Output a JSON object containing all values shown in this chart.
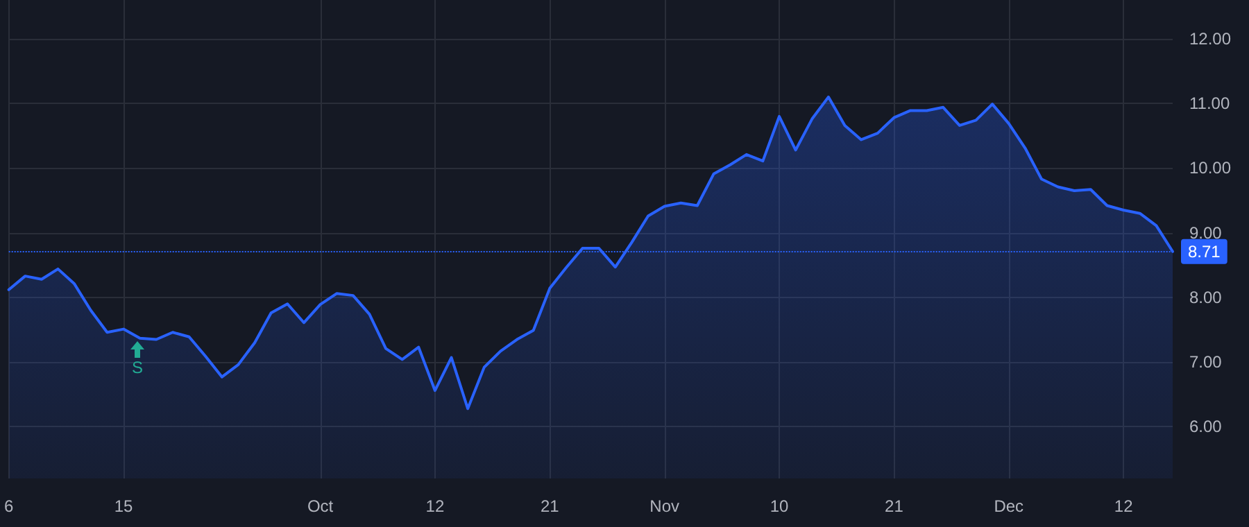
{
  "chart_data": {
    "type": "area",
    "categories": [
      "6",
      null,
      null,
      null,
      null,
      null,
      null,
      "15",
      null,
      null,
      null,
      null,
      null,
      null,
      null,
      null,
      null,
      null,
      null,
      "Oct",
      null,
      null,
      null,
      null,
      null,
      null,
      "12",
      null,
      null,
      null,
      null,
      null,
      null,
      "21",
      null,
      null,
      null,
      null,
      null,
      null,
      "Nov",
      null,
      null,
      null,
      null,
      null,
      null,
      "10",
      null,
      null,
      null,
      null,
      null,
      null,
      "21",
      null,
      null,
      null,
      null,
      null,
      null,
      "Dec",
      null,
      null,
      null,
      null,
      null,
      null,
      "12",
      null,
      null,
      null
    ],
    "series": [
      {
        "color": "#2962ff",
        "values": [
          8.12,
          8.33,
          8.28,
          8.44,
          8.21,
          7.8,
          7.46,
          7.51,
          7.37,
          7.35,
          7.46,
          7.39,
          7.09,
          6.77,
          6.96,
          7.3,
          7.76,
          7.9,
          7.61,
          7.89,
          8.06,
          8.03,
          7.74,
          7.21,
          7.04,
          7.23,
          6.56,
          7.07,
          6.28,
          6.92,
          7.17,
          7.35,
          7.49,
          8.14,
          8.46,
          8.76,
          8.76,
          8.47,
          8.85,
          9.26,
          9.41,
          9.46,
          9.42,
          9.91,
          10.05,
          10.21,
          10.11,
          10.8,
          10.28,
          10.76,
          11.1,
          10.66,
          10.44,
          10.54,
          10.78,
          10.89,
          10.89,
          10.94,
          10.66,
          10.74,
          10.99,
          10.69,
          10.31,
          9.83,
          9.71,
          9.65,
          9.67,
          9.42,
          9.35,
          9.3,
          9.11,
          8.71
        ]
      }
    ],
    "ylim": [
      5.2,
      12.6
    ],
    "yticks": [
      {
        "value": 6,
        "label": "6.00"
      },
      {
        "value": 7,
        "label": "7.00"
      },
      {
        "value": 8,
        "label": "8.00"
      },
      {
        "value": 9,
        "label": "9.00"
      },
      {
        "value": 10,
        "label": "10.00"
      },
      {
        "value": 11,
        "label": "11.00"
      },
      {
        "value": 12,
        "label": "12.00"
      }
    ],
    "ref_lines": [
      {
        "axis": "y",
        "value": 8.71,
        "label": "8.71",
        "color": "#2962ff",
        "line_style": "dotted"
      }
    ],
    "annotations": [
      "S"
    ],
    "grid": true,
    "marker": "none",
    "line_style": "solid"
  }
}
